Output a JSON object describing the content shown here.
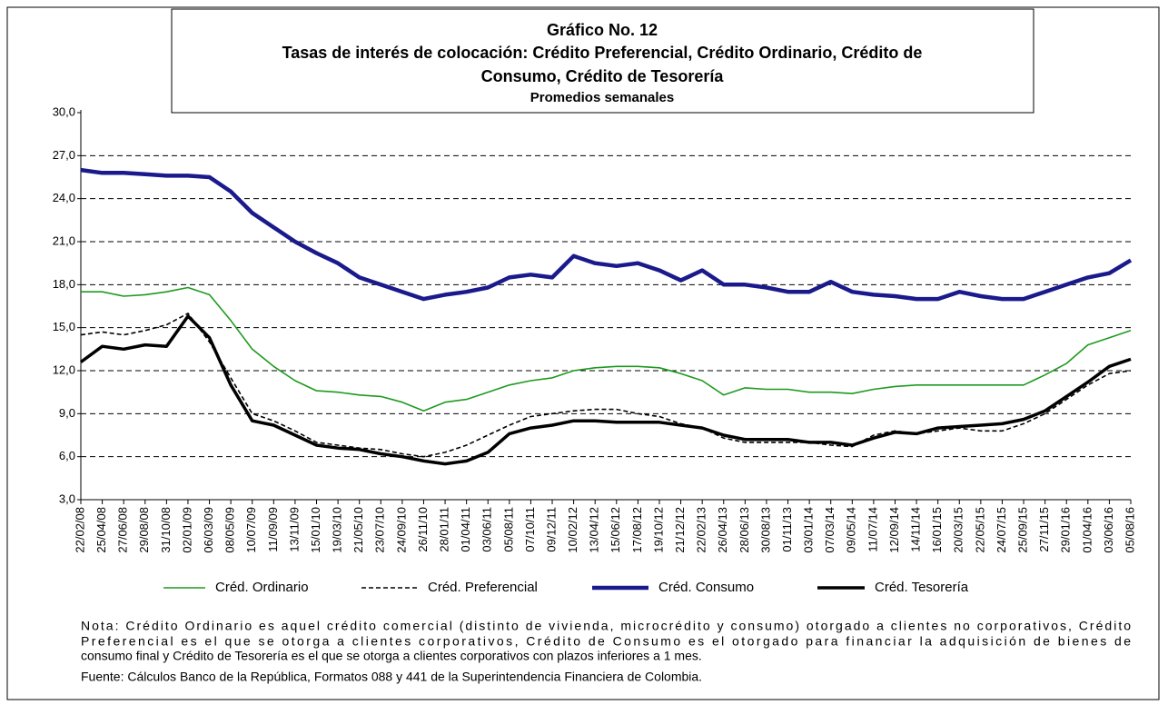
{
  "chart_data": {
    "type": "line",
    "title": [
      "Gráfico No. 12",
      "Tasas de interés de colocación: Crédito Preferencial, Crédito Ordinario, Crédito de",
      "Consumo, Crédito de Tesorería"
    ],
    "subtitle": "Promedios semanales",
    "categories": [
      "22/02/08",
      "25/04/08",
      "27/06/08",
      "29/08/08",
      "31/10/08",
      "02/01/09",
      "06/03/09",
      "08/05/09",
      "10/07/09",
      "11/09/09",
      "13/11/09",
      "15/01/10",
      "19/03/10",
      "21/05/10",
      "23/07/10",
      "24/09/10",
      "26/11/10",
      "28/01/11",
      "01/04/11",
      "03/06/11",
      "05/08/11",
      "07/10/11",
      "09/12/11",
      "10/02/12",
      "13/04/12",
      "15/06/12",
      "17/08/12",
      "19/10/12",
      "21/12/12",
      "22/02/13",
      "26/04/13",
      "28/06/13",
      "30/08/13",
      "01/11/13",
      "03/01/14",
      "07/03/14",
      "09/05/14",
      "11/07/14",
      "12/09/14",
      "14/11/14",
      "16/01/15",
      "20/03/15",
      "22/05/15",
      "24/07/15",
      "25/09/15",
      "27/11/15",
      "29/01/16",
      "01/04/16",
      "03/06/16",
      "05/08/16"
    ],
    "series": [
      {
        "name": "Créd. Ordinario",
        "color": "#1e9a1e",
        "dash": false,
        "values": [
          17.5,
          17.5,
          17.2,
          17.3,
          17.5,
          17.8,
          17.3,
          15.5,
          13.5,
          12.3,
          11.3,
          10.6,
          10.5,
          10.3,
          10.2,
          9.8,
          9.2,
          9.8,
          10.0,
          10.5,
          11.0,
          11.3,
          11.5,
          12.0,
          12.2,
          12.3,
          12.3,
          12.2,
          11.8,
          11.3,
          10.3,
          10.8,
          10.7,
          10.7,
          10.5,
          10.5,
          10.4,
          10.7,
          10.9,
          11.0,
          11.0,
          11.0,
          11.0,
          11.0,
          11.0,
          11.7,
          12.5,
          13.8,
          14.3,
          14.8
        ]
      },
      {
        "name": "Créd. Preferencial",
        "color": "#000000",
        "dash": true,
        "values": [
          14.5,
          14.7,
          14.5,
          14.8,
          15.2,
          16.0,
          14.0,
          11.5,
          9.0,
          8.5,
          7.8,
          7.0,
          6.8,
          6.6,
          6.5,
          6.2,
          6.0,
          6.3,
          6.8,
          7.5,
          8.2,
          8.8,
          9.0,
          9.2,
          9.3,
          9.3,
          9.0,
          8.8,
          8.3,
          8.0,
          7.3,
          7.0,
          7.0,
          7.0,
          7.0,
          6.8,
          6.7,
          7.5,
          7.8,
          7.6,
          7.8,
          8.0,
          7.8,
          7.8,
          8.3,
          9.0,
          10.0,
          11.0,
          11.8,
          12.0
        ]
      },
      {
        "name": "Créd. Consumo",
        "color": "#1a1a8c",
        "dash": false,
        "values": [
          26.0,
          25.8,
          25.8,
          25.7,
          25.6,
          25.6,
          25.5,
          24.5,
          23.0,
          22.0,
          21.0,
          20.2,
          19.5,
          18.5,
          18.0,
          17.5,
          17.0,
          17.3,
          17.5,
          17.8,
          18.5,
          18.7,
          18.5,
          20.0,
          19.5,
          19.3,
          19.5,
          19.0,
          18.3,
          19.0,
          18.0,
          18.0,
          17.8,
          17.5,
          17.5,
          18.2,
          17.5,
          17.3,
          17.2,
          17.0,
          17.0,
          17.5,
          17.2,
          17.0,
          17.0,
          17.5,
          18.0,
          18.5,
          18.8,
          19.7
        ]
      },
      {
        "name": "Créd. Tesorería",
        "color": "#000000",
        "dash": false,
        "values": [
          12.6,
          13.7,
          13.5,
          13.8,
          13.7,
          15.8,
          14.3,
          11.0,
          8.5,
          8.2,
          7.5,
          6.8,
          6.6,
          6.5,
          6.2,
          6.0,
          5.7,
          5.5,
          5.7,
          6.3,
          7.6,
          8.0,
          8.2,
          8.5,
          8.5,
          8.4,
          8.4,
          8.4,
          8.2,
          8.0,
          7.5,
          7.2,
          7.2,
          7.2,
          7.0,
          7.0,
          6.8,
          7.3,
          7.7,
          7.6,
          8.0,
          8.1,
          8.2,
          8.3,
          8.6,
          9.2,
          10.2,
          11.2,
          12.3,
          12.8
        ]
      }
    ],
    "ylim": [
      3,
      30
    ],
    "yticks": [
      {
        "value": 3,
        "label": "3,0"
      },
      {
        "value": 6,
        "label": "6,0"
      },
      {
        "value": 9,
        "label": "9,0"
      },
      {
        "value": 12,
        "label": "12,0"
      },
      {
        "value": 15,
        "label": "15,0"
      },
      {
        "value": 18,
        "label": "18,0"
      },
      {
        "value": 21,
        "label": "21,0"
      },
      {
        "value": 24,
        "label": "24,0"
      },
      {
        "value": 27,
        "label": "27,0"
      },
      {
        "value": 30,
        "label": "30,0"
      }
    ],
    "grid": true,
    "legend": "bottom",
    "notes": [
      "Nota: Crédito Ordinario es aquel crédito comercial (distinto de vivienda, microcrédito y consumo) otorgado a clientes no corporativos, Crédito",
      "Preferencial es el que se otorga a clientes corporativos, Crédito de Consumo es el otorgado para financiar la adquisición de bienes de",
      "consumo final  y Crédito de Tesorería es el que se otorga a clientes corporativos con plazos inferiores a 1 mes.",
      "Fuente: Cálculos Banco de la República, Formatos 088 y 441 de la Superintendencia Financiera de Colombia."
    ]
  }
}
